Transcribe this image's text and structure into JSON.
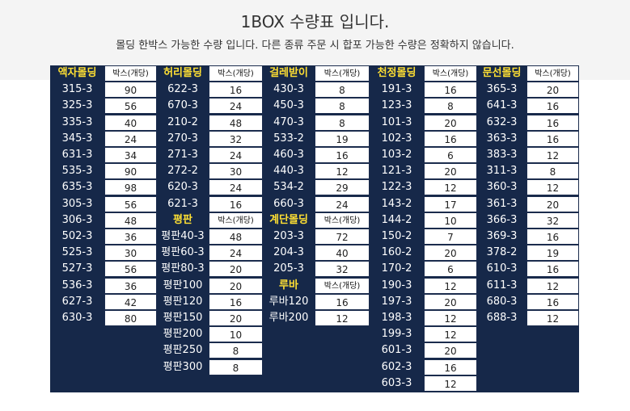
{
  "header": {
    "title": "1BOX 수량표 입니다.",
    "subtitle": "몰딩 한박스 가능한 수량 입니다. 다른 종류 주문 시 합포 가능한 수량은 정확하지 않습니다."
  },
  "colors": {
    "board": "#162849",
    "category_text": "#ffe033",
    "code_text": "#ffffff",
    "qty_cell": "#ffffff"
  },
  "qty_header": "박스(개당)",
  "groups": [
    {
      "name": "액자몰딩",
      "items": [
        [
          "315-3",
          "90"
        ],
        [
          "325-3",
          "56"
        ],
        [
          "335-3",
          "40"
        ],
        [
          "345-3",
          "24"
        ],
        [
          "631-3",
          "34"
        ],
        [
          "535-3",
          "90"
        ],
        [
          "635-3",
          "98"
        ],
        [
          "305-3",
          "56"
        ],
        [
          "306-3",
          "48"
        ],
        [
          "502-3",
          "36"
        ],
        [
          "525-3",
          "30"
        ],
        [
          "527-3",
          "56"
        ],
        [
          "536-3",
          "36"
        ],
        [
          "627-3",
          "42"
        ],
        [
          "630-3",
          "80"
        ]
      ]
    },
    {
      "name": "허리몰딩",
      "items": [
        [
          "622-3",
          "16"
        ],
        [
          "670-3",
          "24"
        ],
        [
          "210-2",
          "48"
        ],
        [
          "270-3",
          "32"
        ],
        [
          "271-3",
          "24"
        ],
        [
          "272-2",
          "30"
        ],
        [
          "620-3",
          "24"
        ],
        [
          "621-3",
          "16"
        ]
      ]
    },
    {
      "name": "평판",
      "items": [
        [
          "평판40-3",
          "48"
        ],
        [
          "평판60-3",
          "24"
        ],
        [
          "평판80-3",
          "20"
        ],
        [
          "평판100",
          "20"
        ],
        [
          "평판120",
          "16"
        ],
        [
          "평판150",
          "20"
        ],
        [
          "평판200",
          "10"
        ],
        [
          "평판250",
          "8"
        ],
        [
          "평판300",
          "8"
        ]
      ]
    },
    {
      "name": "걸레받이",
      "items": [
        [
          "430-3",
          "8"
        ],
        [
          "450-3",
          "8"
        ],
        [
          "470-3",
          "8"
        ],
        [
          "533-2",
          "19"
        ],
        [
          "460-3",
          "16"
        ],
        [
          "440-3",
          "12"
        ],
        [
          "534-2",
          "29"
        ],
        [
          "660-3",
          "24"
        ]
      ]
    },
    {
      "name": "계단몰딩",
      "items": [
        [
          "203-3",
          "72"
        ],
        [
          "204-3",
          "40"
        ],
        [
          "205-3",
          "32"
        ]
      ]
    },
    {
      "name": "루바",
      "items": [
        [
          "루바120",
          "16"
        ],
        [
          "루바200",
          "12"
        ]
      ]
    },
    {
      "name": "천정몰딩",
      "items": [
        [
          "191-3",
          "16"
        ],
        [
          "123-3",
          "8"
        ],
        [
          "101-3",
          "20"
        ],
        [
          "102-3",
          "16"
        ],
        [
          "103-2",
          "6"
        ],
        [
          "121-3",
          "20"
        ],
        [
          "122-3",
          "12"
        ],
        [
          "143-2",
          "17"
        ],
        [
          "144-2",
          "10"
        ],
        [
          "150-2",
          "7"
        ],
        [
          "160-2",
          "20"
        ],
        [
          "170-2",
          "6"
        ],
        [
          "190-3",
          "12"
        ],
        [
          "197-3",
          "20"
        ],
        [
          "198-3",
          "12"
        ],
        [
          "199-3",
          "12"
        ],
        [
          "601-3",
          "20"
        ],
        [
          "602-3",
          "16"
        ],
        [
          "603-3",
          "12"
        ]
      ]
    },
    {
      "name": "문선몰딩",
      "items": [
        [
          "365-3",
          "20"
        ],
        [
          "641-3",
          "16"
        ],
        [
          "632-3",
          "16"
        ],
        [
          "363-3",
          "16"
        ],
        [
          "383-3",
          "12"
        ],
        [
          "311-3",
          "8"
        ],
        [
          "360-3",
          "12"
        ],
        [
          "361-3",
          "20"
        ],
        [
          "366-3",
          "32"
        ],
        [
          "369-3",
          "16"
        ],
        [
          "378-2",
          "19"
        ],
        [
          "610-3",
          "16"
        ],
        [
          "611-3",
          "12"
        ],
        [
          "680-3",
          "16"
        ],
        [
          "688-3",
          "12"
        ]
      ]
    }
  ]
}
